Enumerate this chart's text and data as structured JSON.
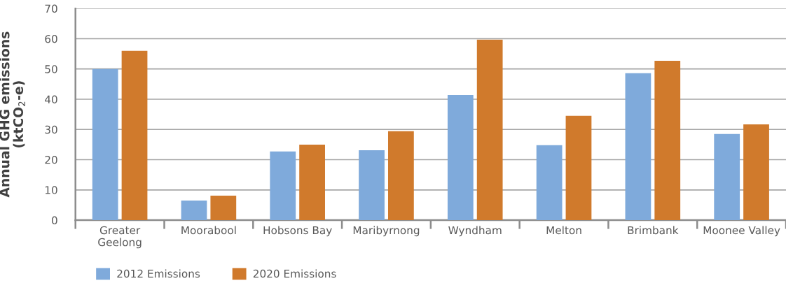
{
  "chart_data": {
    "type": "bar",
    "categories": [
      "Greater\nGeelong",
      "Moorabool",
      "Hobsons Bay",
      "Maribyrnong",
      "Wyndham",
      "Melton",
      "Brimbank",
      "Moonee Valley"
    ],
    "series": [
      {
        "name": "2012 Emissions",
        "color": "#7faadb",
        "values": [
          50.0,
          6.5,
          22.7,
          23.1,
          41.4,
          24.8,
          48.6,
          28.5
        ]
      },
      {
        "name": "2020 Emissions",
        "color": "#d07a2c",
        "values": [
          56.0,
          8.1,
          25.0,
          29.4,
          59.7,
          34.5,
          52.7,
          31.7
        ]
      }
    ],
    "ylabel": "Annual GHG emissions\n(ktCO$_{2}$-e)",
    "ylim": [
      0,
      70
    ],
    "yticks": [
      0,
      10,
      20,
      30,
      40,
      50,
      60,
      70
    ],
    "grid": "y",
    "legend": "bottom"
  }
}
